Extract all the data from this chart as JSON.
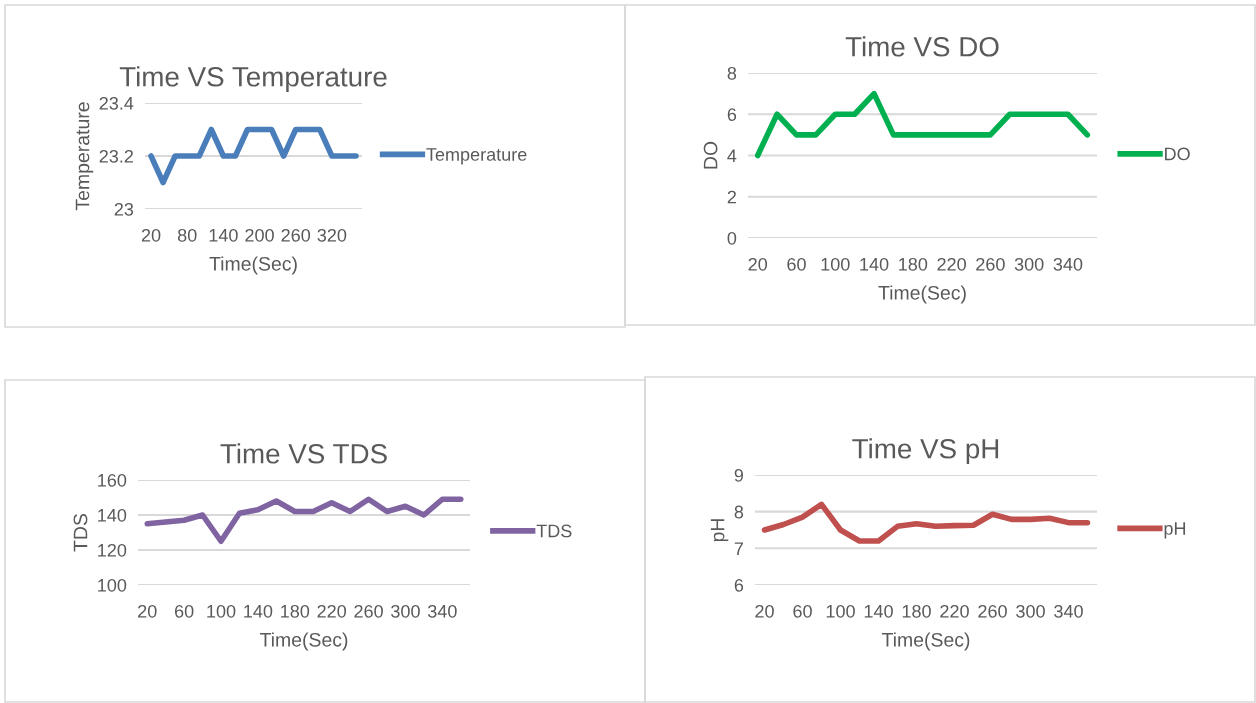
{
  "chart_data": [
    {
      "type": "line",
      "title": "Time VS Temperature",
      "xlabel": "Time(Sec)",
      "ylabel": "Temperature",
      "categories": [
        "20",
        null,
        null,
        "80",
        null,
        null,
        "140",
        null,
        null,
        "200",
        null,
        null,
        "260",
        null,
        null,
        "320",
        null,
        null
      ],
      "series": [
        {
          "name": "Temperature",
          "color": "#4a7ebb",
          "values": [
            23.2,
            23.1,
            23.2,
            23.2,
            23.2,
            23.3,
            23.2,
            23.2,
            23.3,
            23.3,
            23.3,
            23.2,
            23.3,
            23.3,
            23.3,
            23.2,
            23.2,
            23.2
          ]
        }
      ],
      "ylim": [
        23,
        23.4
      ],
      "yticks": [
        {
          "value": 23,
          "label": "23"
        },
        {
          "value": 23.2,
          "label": "23.2"
        },
        {
          "value": 23.4,
          "label": "23.4"
        }
      ],
      "grid": "y",
      "legend": "right"
    },
    {
      "type": "line",
      "title": "Time VS DO",
      "xlabel": "Time(Sec)",
      "ylabel": "DO",
      "categories": [
        "20",
        null,
        "60",
        null,
        "100",
        null,
        "140",
        null,
        "180",
        null,
        "220",
        null,
        "260",
        null,
        "300",
        null,
        "340",
        null
      ],
      "series": [
        {
          "name": "DO",
          "color": "#00b050",
          "values": [
            4,
            6,
            5,
            5,
            6,
            6,
            7,
            5,
            5,
            5,
            5,
            5,
            5,
            6,
            6,
            6,
            6,
            5
          ]
        }
      ],
      "ylim": [
        0,
        8
      ],
      "yticks": [
        0,
        2,
        4,
        6,
        8
      ],
      "grid": "y",
      "legend": "right"
    },
    {
      "type": "line",
      "title": "Time VS TDS",
      "xlabel": "Time(Sec)",
      "ylabel": "TDS",
      "categories": [
        "20",
        null,
        "60",
        null,
        "100",
        null,
        "140",
        null,
        "180",
        null,
        "220",
        null,
        "260",
        null,
        "300",
        null,
        "340",
        null
      ],
      "series": [
        {
          "name": "TDS",
          "color": "#8064a2",
          "values": [
            135,
            136,
            137,
            140,
            125,
            141,
            143,
            148,
            142,
            142,
            147,
            142,
            149,
            142,
            145,
            140,
            149,
            149
          ]
        }
      ],
      "ylim": [
        100,
        160
      ],
      "yticks": [
        100,
        120,
        140,
        160
      ],
      "grid": "y",
      "legend": "right"
    },
    {
      "type": "line",
      "title": "Time VS pH",
      "xlabel": "Time(Sec)",
      "ylabel": "pH",
      "categories": [
        "20",
        null,
        "60",
        null,
        "100",
        null,
        "140",
        null,
        "180",
        null,
        "220",
        null,
        "260",
        null,
        "300",
        null,
        "340",
        null
      ],
      "series": [
        {
          "name": "pH",
          "color": "#c0504d",
          "values": [
            7.5,
            7.65,
            7.85,
            8.2,
            7.5,
            7.2,
            7.2,
            7.6,
            7.67,
            7.6,
            7.62,
            7.63,
            7.93,
            7.79,
            7.79,
            7.82,
            7.7,
            7.7
          ]
        }
      ],
      "ylim": [
        6,
        9
      ],
      "yticks": [
        6,
        7,
        8,
        9
      ],
      "grid": "y",
      "legend": "right"
    }
  ]
}
